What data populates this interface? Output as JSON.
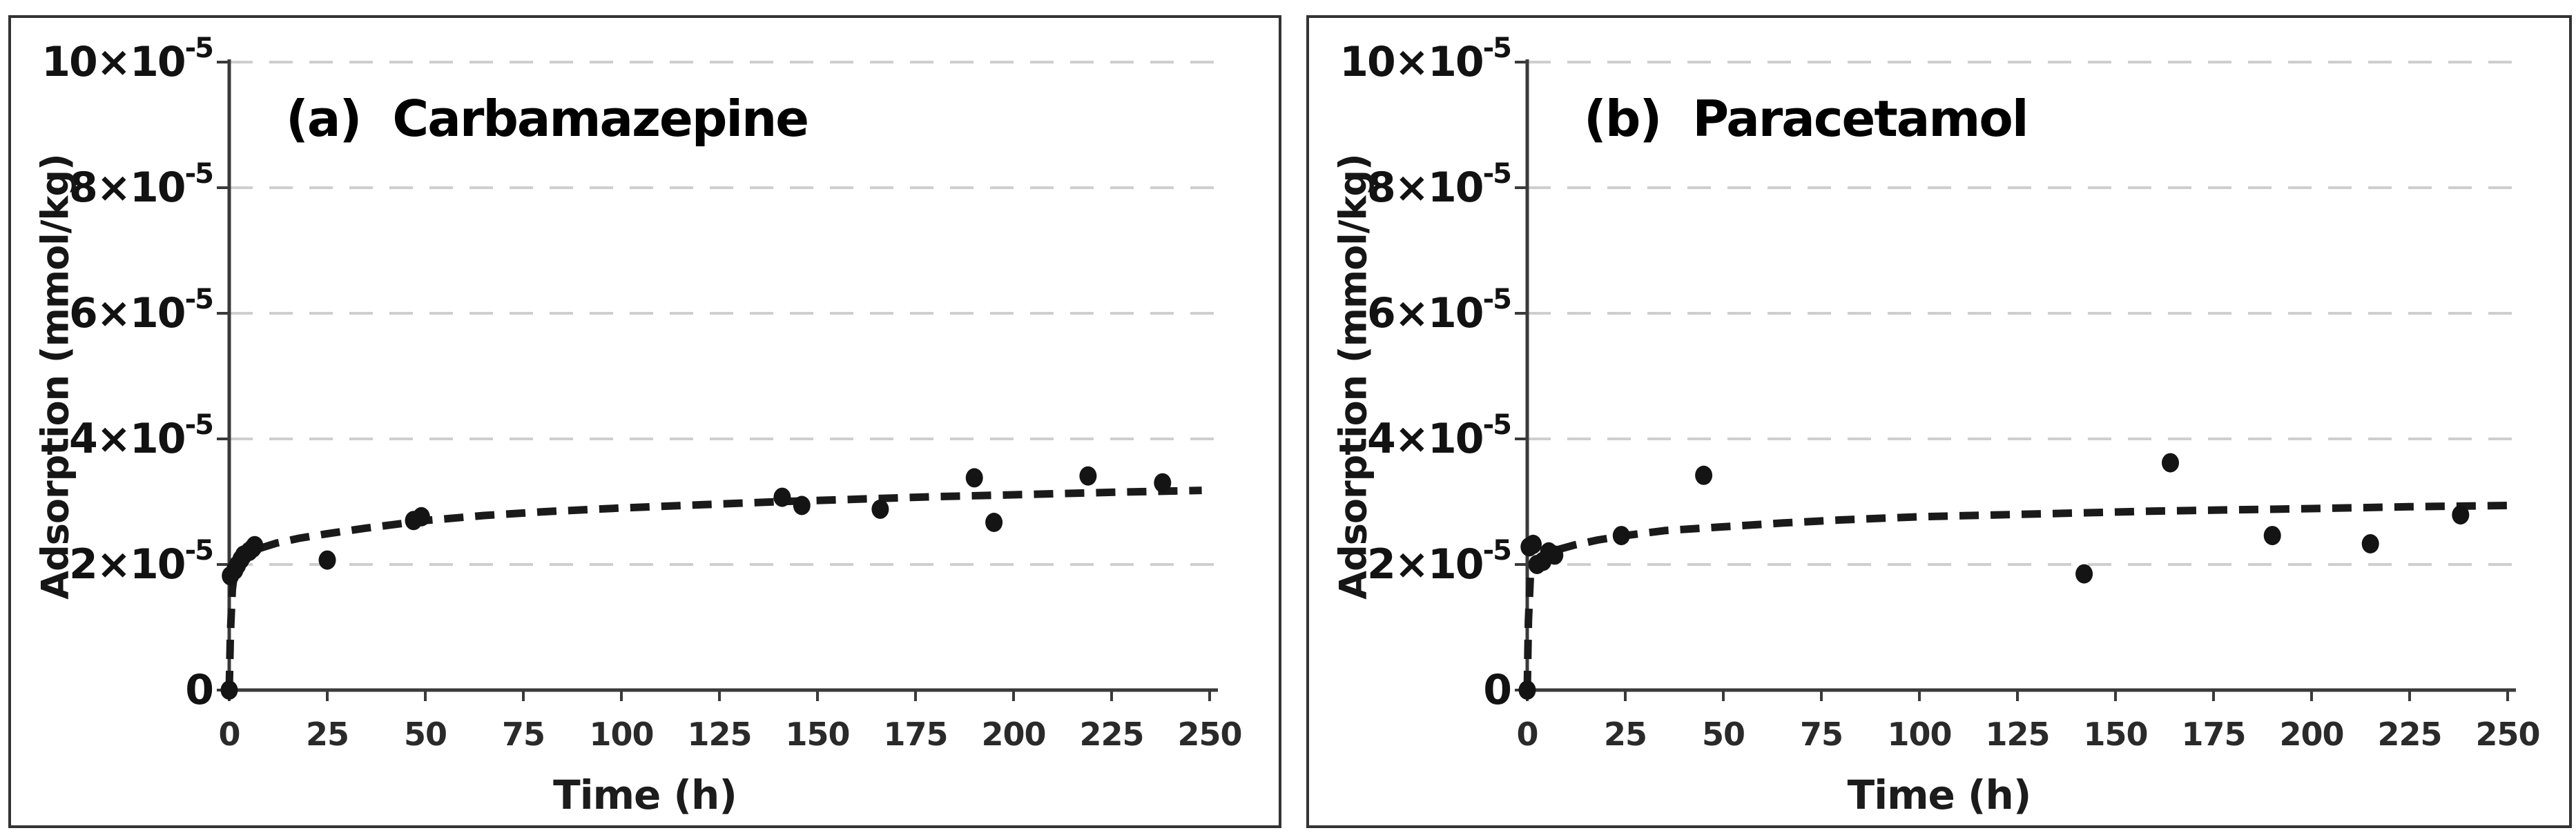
{
  "figure": {
    "background": "#ffffff",
    "panel_border_color": "#333333",
    "panel_count": 2
  },
  "chart_data": [
    {
      "type": "scatter",
      "panel_label": "(a)",
      "title": "Carbamazepine",
      "xlabel": "Time (h)",
      "ylabel": "Adsorption (mmol/kg)",
      "xlim": [
        0,
        250
      ],
      "ylim": [
        0,
        0.0001
      ],
      "grid": {
        "horizontal_dashed": true,
        "vertical": false,
        "legend": "none"
      },
      "x_ticks": [
        0,
        25,
        50,
        75,
        100,
        125,
        150,
        175,
        200,
        225,
        250
      ],
      "y_ticks": [
        {
          "value": 0,
          "base": "0",
          "sup": ""
        },
        {
          "value": 2e-05,
          "base": "2×10",
          "sup": "-5"
        },
        {
          "value": 4e-05,
          "base": "4×10",
          "sup": "-5"
        },
        {
          "value": 6e-05,
          "base": "6×10",
          "sup": "-5"
        },
        {
          "value": 8e-05,
          "base": "8×10",
          "sup": "-5"
        },
        {
          "value": 0.0001,
          "base": "10×10",
          "sup": "-5"
        }
      ],
      "colors": {
        "marker": "#141414",
        "trend": "#1a1a1a",
        "grid": "#cecece",
        "axis": "#3a3a3a",
        "text": "#121212",
        "x_tick_text": "#2a2a2a"
      },
      "series": [
        {
          "name": "observed",
          "marker": "circle",
          "points": [
            [
              0,
              0
            ],
            [
              0.3,
              1.82e-05
            ],
            [
              1.4,
              1.91e-05
            ],
            [
              2.1,
              1.99e-05
            ],
            [
              3.0,
              2.08e-05
            ],
            [
              3.7,
              2.15e-05
            ],
            [
              5.1,
              2.21e-05
            ],
            [
              6.0,
              2.26e-05
            ],
            [
              6.5,
              2.3e-05
            ],
            [
              25,
              2.07e-05
            ],
            [
              47,
              2.7e-05
            ],
            [
              49,
              2.76e-05
            ],
            [
              141,
              3.07e-05
            ],
            [
              146,
              2.94e-05
            ],
            [
              166,
              2.88e-05
            ],
            [
              190,
              3.38e-05
            ],
            [
              195,
              2.67e-05
            ],
            [
              219,
              3.41e-05
            ],
            [
              238,
              3.3e-05
            ]
          ]
        },
        {
          "name": "fitted-trend",
          "line": "dashed",
          "points": [
            [
              0,
              0
            ],
            [
              0.3,
              9e-06
            ],
            [
              0.8,
              1.6e-05
            ],
            [
              1.5,
              1.95e-05
            ],
            [
              3,
              2.08e-05
            ],
            [
              5,
              2.17e-05
            ],
            [
              8,
              2.26e-05
            ],
            [
              12,
              2.34e-05
            ],
            [
              18,
              2.42e-05
            ],
            [
              25,
              2.49e-05
            ],
            [
              35,
              2.58e-05
            ],
            [
              50,
              2.7e-05
            ],
            [
              65,
              2.78e-05
            ],
            [
              80,
              2.84e-05
            ],
            [
              100,
              2.9e-05
            ],
            [
              120,
              2.95e-05
            ],
            [
              140,
              3e-05
            ],
            [
              160,
              3.04e-05
            ],
            [
              180,
              3.08e-05
            ],
            [
              200,
              3.11e-05
            ],
            [
              225,
              3.15e-05
            ],
            [
              248,
              3.18e-05
            ]
          ]
        }
      ]
    },
    {
      "type": "scatter",
      "panel_label": "(b)",
      "title": "Paracetamol",
      "xlabel": "Time (h)",
      "ylabel": "Adsorption (mmol/kg)",
      "xlim": [
        0,
        250
      ],
      "ylim": [
        0,
        0.0001
      ],
      "grid": {
        "horizontal_dashed": true,
        "vertical": false,
        "legend": "none"
      },
      "x_ticks": [
        0,
        25,
        50,
        75,
        100,
        125,
        150,
        175,
        200,
        225,
        250
      ],
      "y_ticks": [
        {
          "value": 0,
          "base": "0",
          "sup": ""
        },
        {
          "value": 2e-05,
          "base": "2×10",
          "sup": "-5"
        },
        {
          "value": 4e-05,
          "base": "4×10",
          "sup": "-5"
        },
        {
          "value": 6e-05,
          "base": "6×10",
          "sup": "-5"
        },
        {
          "value": 8e-05,
          "base": "8×10",
          "sup": "-5"
        },
        {
          "value": 0.0001,
          "base": "10×10",
          "sup": "-5"
        }
      ],
      "colors": {
        "marker": "#141414",
        "trend": "#1a1a1a",
        "grid": "#cecece",
        "axis": "#3a3a3a",
        "text": "#121212",
        "x_tick_text": "#2a2a2a"
      },
      "series": [
        {
          "name": "observed",
          "marker": "circle",
          "points": [
            [
              0,
              0
            ],
            [
              0.5,
              2.28e-05
            ],
            [
              1.5,
              2.32e-05
            ],
            [
              2.5,
              2e-05
            ],
            [
              4.0,
              2.05e-05
            ],
            [
              5.5,
              2.2e-05
            ],
            [
              7.0,
              2.15e-05
            ],
            [
              24,
              2.46e-05
            ],
            [
              45,
              3.42e-05
            ],
            [
              142,
              1.85e-05
            ],
            [
              164,
              3.62e-05
            ],
            [
              190,
              2.46e-05
            ],
            [
              215,
              2.33e-05
            ],
            [
              238,
              2.79e-05
            ]
          ]
        },
        {
          "name": "fitted-trend",
          "line": "dashed",
          "points": [
            [
              0,
              0
            ],
            [
              0.3,
              1.1e-05
            ],
            [
              0.8,
              1.8e-05
            ],
            [
              1.5,
              2e-05
            ],
            [
              3,
              2.1e-05
            ],
            [
              5,
              2.17e-05
            ],
            [
              8,
              2.24e-05
            ],
            [
              12,
              2.31e-05
            ],
            [
              18,
              2.39e-05
            ],
            [
              25,
              2.46e-05
            ],
            [
              35,
              2.54e-05
            ],
            [
              50,
              2.6e-05
            ],
            [
              65,
              2.66e-05
            ],
            [
              80,
              2.71e-05
            ],
            [
              100,
              2.76e-05
            ],
            [
              120,
              2.79e-05
            ],
            [
              140,
              2.82e-05
            ],
            [
              160,
              2.85e-05
            ],
            [
              180,
              2.87e-05
            ],
            [
              200,
              2.89e-05
            ],
            [
              225,
              2.92e-05
            ],
            [
              250,
              2.94e-05
            ]
          ]
        }
      ]
    }
  ]
}
